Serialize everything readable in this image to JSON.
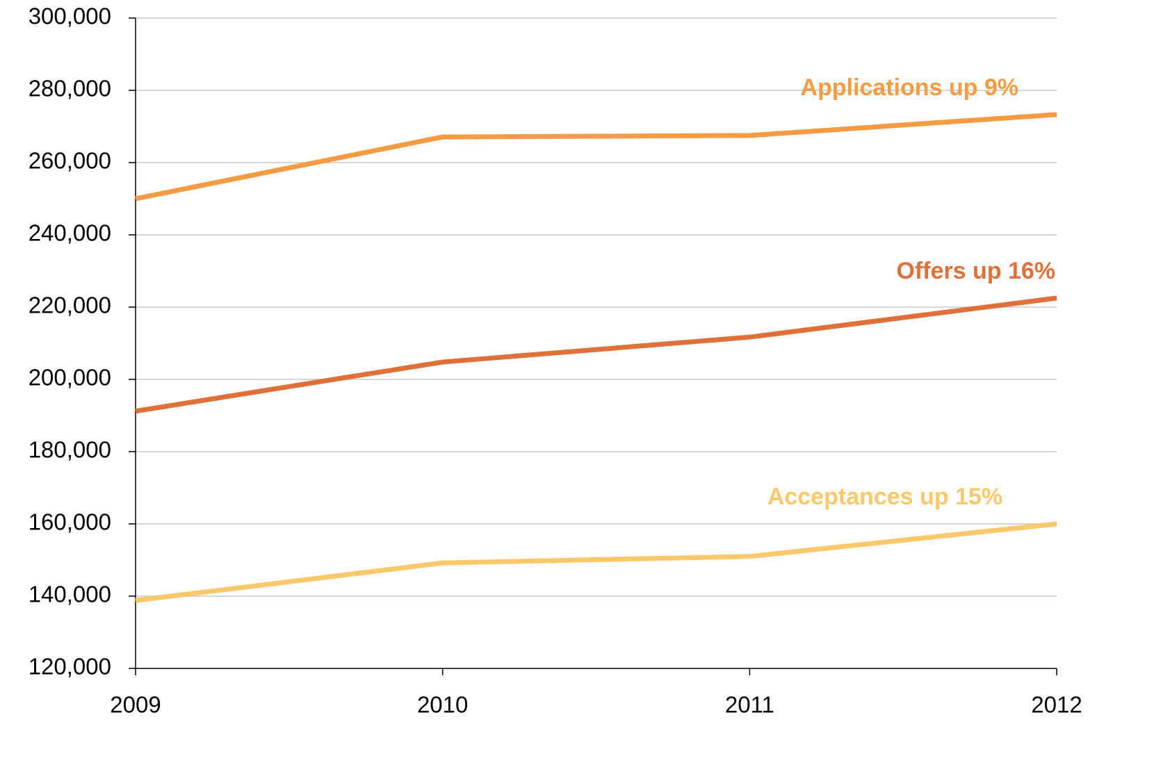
{
  "chart_data": {
    "type": "line",
    "x": [
      2009,
      2010,
      2011,
      2012
    ],
    "xlim": [
      2009,
      2012
    ],
    "xticks": [
      2009,
      2010,
      2011,
      2012
    ],
    "ylim": [
      120000,
      300000
    ],
    "yticks": [
      {
        "value": 120000,
        "label": "120,000"
      },
      {
        "value": 140000,
        "label": "140,000"
      },
      {
        "value": 160000,
        "label": "160,000"
      },
      {
        "value": 180000,
        "label": "180,000"
      },
      {
        "value": 200000,
        "label": "200,000"
      },
      {
        "value": 220000,
        "label": "220,000"
      },
      {
        "value": 240000,
        "label": "240,000"
      },
      {
        "value": 260000,
        "label": "260,000"
      },
      {
        "value": 280000,
        "label": "280,000"
      },
      {
        "value": 300000,
        "label": "300,000"
      }
    ],
    "grid": true,
    "series": [
      {
        "color": "#f59b42",
        "values": [
          250000,
          267100,
          267500,
          273300
        ]
      },
      {
        "color": "#e0703a",
        "values": [
          191200,
          204800,
          211700,
          222500
        ]
      },
      {
        "color": "#fdc86a",
        "values": [
          138800,
          149200,
          151000,
          160000
        ]
      }
    ],
    "annotations": [
      {
        "text": "Applications up 9%",
        "color": "#f59b42"
      },
      {
        "text": "Offers up 16%",
        "color": "#e0703a"
      },
      {
        "text": "Acceptances up 15%",
        "color": "#fdc86a"
      }
    ]
  }
}
